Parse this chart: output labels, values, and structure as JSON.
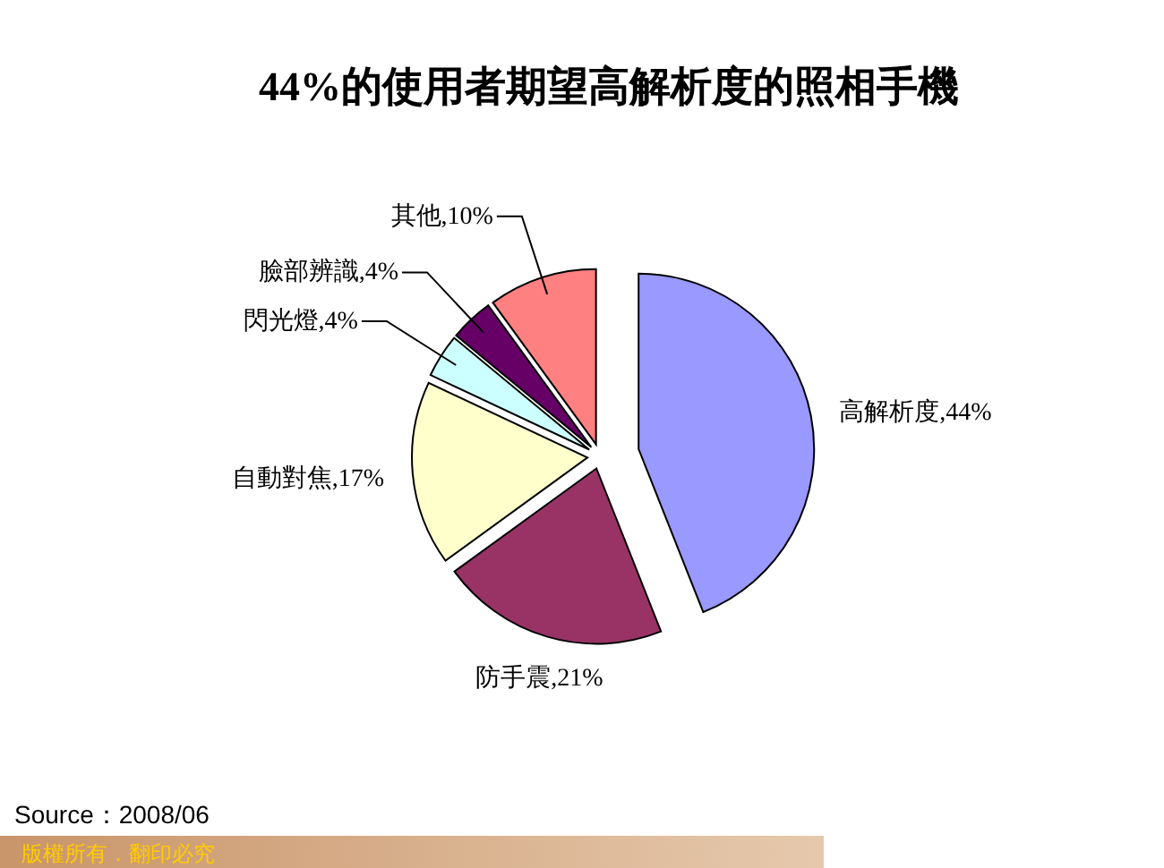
{
  "chart_data": {
    "type": "pie",
    "title": "44%的使用者期望高解析度的照相手機",
    "categories": [
      "高解析度",
      "防手震",
      "自動對焦",
      "閃光燈",
      "臉部辨識",
      "其他"
    ],
    "values": [
      44,
      21,
      17,
      4,
      4,
      10
    ],
    "colors": [
      "#9999ff",
      "#993366",
      "#ffffcc",
      "#ccffff",
      "#660066",
      "#ff8080"
    ],
    "value_labels": [
      "44%",
      "21%",
      "17%",
      "4%",
      "4%",
      "10%"
    ],
    "annotations": [
      "Source：2008/06",
      "版權所有．翻印必究"
    ]
  }
}
